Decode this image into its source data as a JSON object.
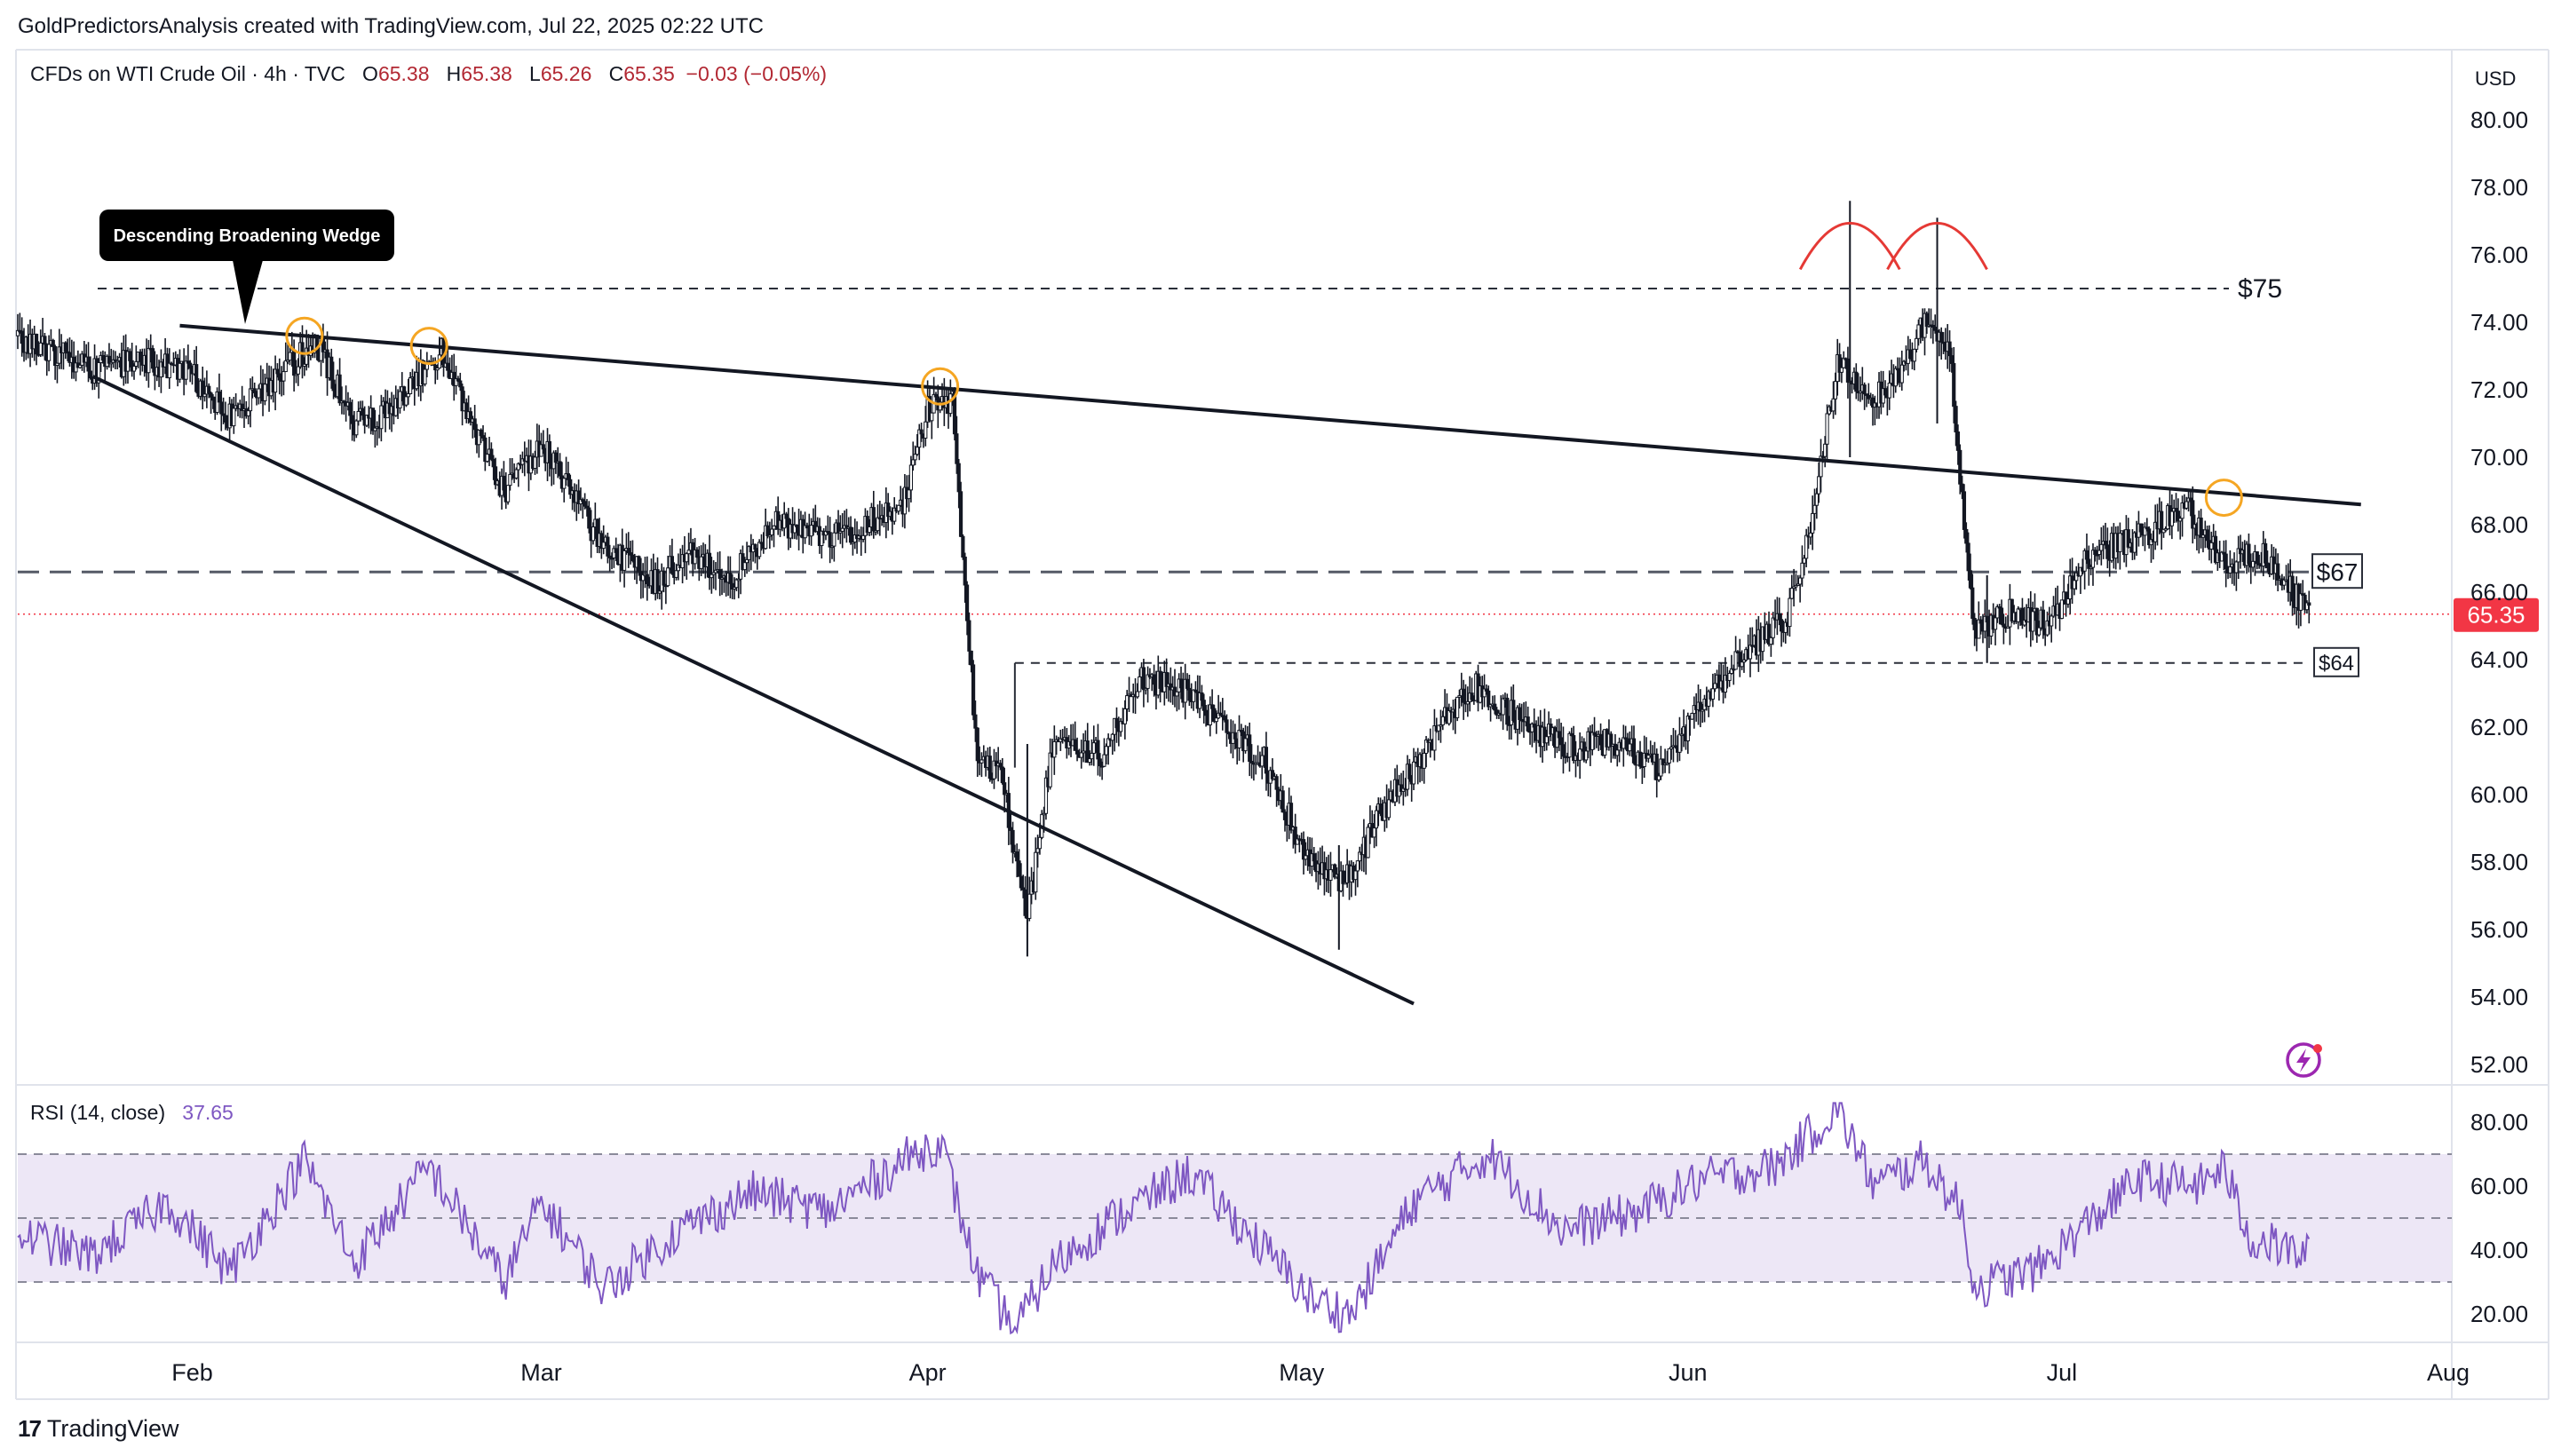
{
  "header": {
    "creator_line": "GoldPredictorsAnalysis created with TradingView.com, Jul 22, 2025 02:22 UTC",
    "symbol": "CFDs on WTI Crude Oil · 4h · TVC",
    "ohlc": [
      {
        "key": "O",
        "value": "65.38"
      },
      {
        "key": "H",
        "value": "65.38"
      },
      {
        "key": "L",
        "value": "65.26"
      },
      {
        "key": "C",
        "value": "65.35"
      }
    ],
    "change": "−0.03 (−0.05%)"
  },
  "rsi_header": {
    "label": "RSI (14, close)",
    "value": "37.65"
  },
  "brand": {
    "logo": "17",
    "name": "TradingView"
  },
  "colors": {
    "up": "#089981",
    "down": "#f23645",
    "candle": "#131722",
    "rsi_line": "#7e57c2",
    "rsi_band": "#ede7f6",
    "price_badge": "#f23645",
    "annotation_circle": "#f5a623",
    "head_arc": "#e53935"
  },
  "chart_data": [
    {
      "type": "candlestick",
      "title": "CFDs on WTI Crude Oil · 4h · TVC",
      "currency": "USD",
      "ylim": [
        51,
        82
      ],
      "y_ticks": [
        "52.00",
        "54.00",
        "56.00",
        "58.00",
        "60.00",
        "62.00",
        "64.00",
        "66.00",
        "68.00",
        "70.00",
        "72.00",
        "74.00",
        "76.00",
        "78.00",
        "80.00"
      ],
      "x_ticks": [
        "Feb",
        "Mar",
        "Apr",
        "May",
        "Jun",
        "Jul",
        "Aug"
      ],
      "x_tick_dates": [
        "2025-02-01",
        "2025-03-01",
        "2025-04-01",
        "2025-05-01",
        "2025-06-01",
        "2025-07-01",
        "2025-08-01"
      ],
      "x_range": [
        "2025-01-18",
        "2025-08-01"
      ],
      "price_path": [
        [
          "2025-01-18",
          73.6
        ],
        [
          "2025-01-24",
          72.6
        ],
        [
          "2025-01-28",
          72.9
        ],
        [
          "2025-02-01",
          72.4
        ],
        [
          "2025-02-04",
          71.2
        ],
        [
          "2025-02-11",
          73.4
        ],
        [
          "2025-02-14",
          71.0
        ],
        [
          "2025-02-17",
          71.4
        ],
        [
          "2025-02-21",
          73.2
        ],
        [
          "2025-02-26",
          68.9
        ],
        [
          "2025-03-01",
          70.4
        ],
        [
          "2025-03-05",
          67.9
        ],
        [
          "2025-03-10",
          66.2
        ],
        [
          "2025-03-13",
          67.2
        ],
        [
          "2025-03-16",
          66.3
        ],
        [
          "2025-03-20",
          68.1
        ],
        [
          "2025-03-25",
          67.6
        ],
        [
          "2025-03-30",
          68.6
        ],
        [
          "2025-04-01",
          71.4
        ],
        [
          "2025-04-03",
          71.6
        ],
        [
          "2025-04-05",
          61.0
        ],
        [
          "2025-04-07",
          60.5
        ],
        [
          "2025-04-09",
          56.2
        ],
        [
          "2025-04-11",
          61.5
        ],
        [
          "2025-04-15",
          61.2
        ],
        [
          "2025-04-18",
          63.4
        ],
        [
          "2025-04-21",
          63.2
        ],
        [
          "2025-04-24",
          62.3
        ],
        [
          "2025-04-28",
          61.0
        ],
        [
          "2025-05-02",
          57.7
        ],
        [
          "2025-05-05",
          57.5
        ],
        [
          "2025-05-07",
          59.3
        ],
        [
          "2025-05-10",
          60.8
        ],
        [
          "2025-05-13",
          62.5
        ],
        [
          "2025-05-15",
          63.2
        ],
        [
          "2025-05-20",
          61.8
        ],
        [
          "2025-05-23",
          61.4
        ],
        [
          "2025-05-26",
          61.6
        ],
        [
          "2025-05-30",
          60.7
        ],
        [
          "2025-06-02",
          62.6
        ],
        [
          "2025-06-06",
          64.4
        ],
        [
          "2025-06-09",
          65.2
        ],
        [
          "2025-06-11",
          68.3
        ],
        [
          "2025-06-13",
          72.8
        ],
        [
          "2025-06-16",
          71.8
        ],
        [
          "2025-06-18",
          72.5
        ],
        [
          "2025-06-20",
          74.0
        ],
        [
          "2025-06-22",
          73.2
        ],
        [
          "2025-06-23",
          68.6
        ],
        [
          "2025-06-24",
          64.9
        ],
        [
          "2025-06-27",
          65.4
        ],
        [
          "2025-06-30",
          65.0
        ],
        [
          "2025-07-03",
          67.1
        ],
        [
          "2025-07-07",
          67.6
        ],
        [
          "2025-07-11",
          68.5
        ],
        [
          "2025-07-14",
          66.9
        ],
        [
          "2025-07-17",
          67.1
        ],
        [
          "2025-07-19",
          66.2
        ],
        [
          "2025-07-21",
          65.35
        ]
      ],
      "current_price": "65.35",
      "levels": [
        {
          "label": "$75",
          "value": 75
        },
        {
          "label": "$67",
          "value": 66.6
        },
        {
          "label": "$64",
          "value": 63.9
        }
      ],
      "trendlines": [
        {
          "name": "wedge-upper",
          "from": [
            "2025-01-31",
            73.9
          ],
          "to": [
            "2025-07-25",
            68.6
          ]
        },
        {
          "name": "wedge-lower",
          "from": [
            "2025-01-24",
            72.4
          ],
          "to": [
            "2025-05-10",
            53.8
          ]
        }
      ],
      "annotations": [
        {
          "type": "callout",
          "text": "Descending Broadening Wedge"
        },
        {
          "type": "circle",
          "at": [
            "2025-02-10",
            73.6
          ]
        },
        {
          "type": "circle",
          "at": [
            "2025-02-20",
            73.3
          ]
        },
        {
          "type": "circle",
          "at": [
            "2025-04-02",
            72.1
          ]
        },
        {
          "type": "circle",
          "at": [
            "2025-07-14",
            68.8
          ]
        },
        {
          "type": "arc",
          "at": [
            "2025-06-14",
            76.2
          ]
        },
        {
          "type": "arc",
          "at": [
            "2025-06-21",
            76.2
          ]
        }
      ]
    },
    {
      "type": "line",
      "title": "RSI (14, close)",
      "ylim": [
        10,
        90
      ],
      "y_ticks": [
        "20.00",
        "40.00",
        "60.00",
        "80.00"
      ],
      "band": [
        30,
        70
      ],
      "midline": 50,
      "last_value": 37.65,
      "rsi_path": [
        [
          "2025-01-18",
          45
        ],
        [
          "2025-01-24",
          38
        ],
        [
          "2025-01-30",
          55
        ],
        [
          "2025-02-04",
          33
        ],
        [
          "2025-02-10",
          68
        ],
        [
          "2025-02-14",
          36
        ],
        [
          "2025-02-20",
          66
        ],
        [
          "2025-02-26",
          30
        ],
        [
          "2025-03-01",
          55
        ],
        [
          "2025-03-06",
          28
        ],
        [
          "2025-03-12",
          46
        ],
        [
          "2025-03-18",
          58
        ],
        [
          "2025-03-24",
          52
        ],
        [
          "2025-03-30",
          68
        ],
        [
          "2025-04-02",
          74
        ],
        [
          "2025-04-05",
          32
        ],
        [
          "2025-04-08",
          15
        ],
        [
          "2025-04-11",
          35
        ],
        [
          "2025-04-16",
          50
        ],
        [
          "2025-04-22",
          64
        ],
        [
          "2025-04-28",
          40
        ],
        [
          "2025-05-02",
          24
        ],
        [
          "2025-05-05",
          20
        ],
        [
          "2025-05-10",
          55
        ],
        [
          "2025-05-16",
          70
        ],
        [
          "2025-05-22",
          46
        ],
        [
          "2025-05-28",
          52
        ],
        [
          "2025-06-02",
          62
        ],
        [
          "2025-06-08",
          66
        ],
        [
          "2025-06-13",
          84
        ],
        [
          "2025-06-16",
          60
        ],
        [
          "2025-06-20",
          68
        ],
        [
          "2025-06-23",
          52
        ],
        [
          "2025-06-24",
          28
        ],
        [
          "2025-06-29",
          34
        ],
        [
          "2025-07-03",
          48
        ],
        [
          "2025-07-07",
          62
        ],
        [
          "2025-07-12",
          60
        ],
        [
          "2025-07-14",
          66
        ],
        [
          "2025-07-16",
          44
        ],
        [
          "2025-07-21",
          37.65
        ]
      ]
    }
  ]
}
